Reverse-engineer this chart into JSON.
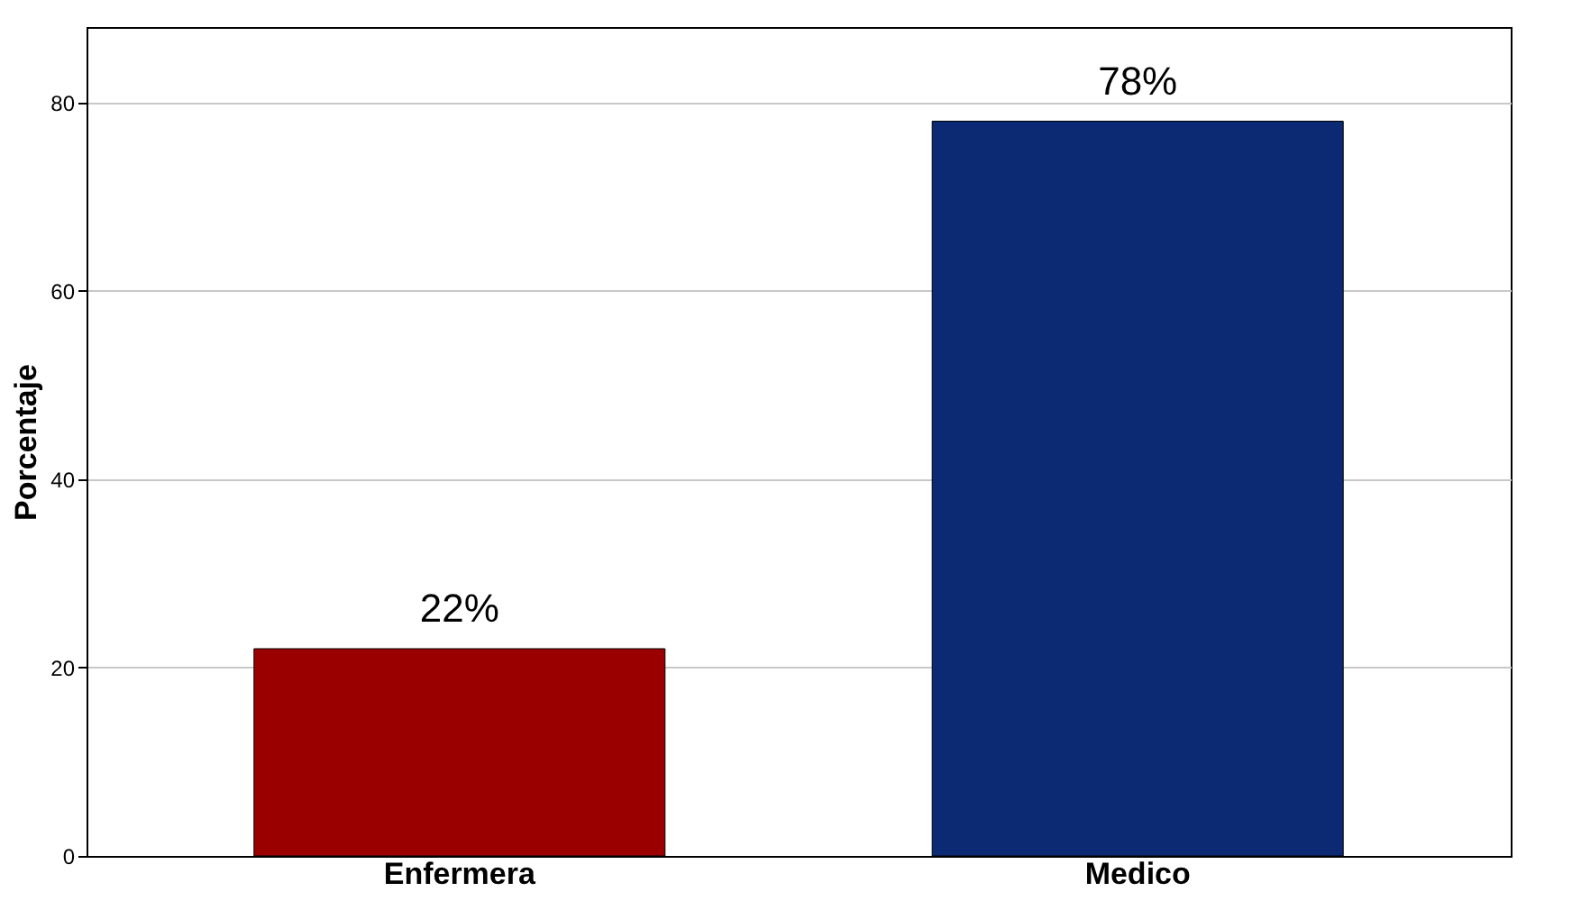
{
  "chart_data": {
    "type": "bar",
    "ylabel": "Porcentaje",
    "categories": [
      "Enfermera",
      "Medico"
    ],
    "values": [
      22,
      78
    ],
    "colors": [
      "#9b0000",
      "#0c2a74"
    ],
    "value_labels": [
      "22%",
      "78%"
    ],
    "ylim": [
      0,
      88
    ],
    "yticks": [
      0,
      20,
      40,
      60,
      80
    ],
    "grid": "y"
  }
}
